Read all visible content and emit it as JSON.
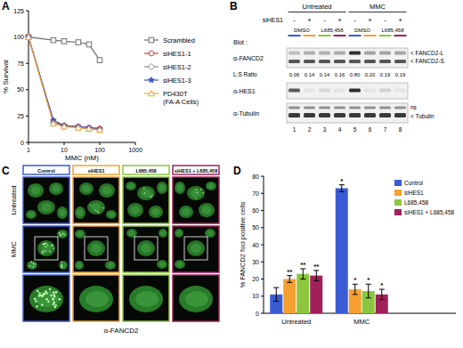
{
  "panels": [
    "A",
    "B",
    "C",
    "D"
  ],
  "chart_data": [
    {
      "type": "line",
      "x_label": "MMC (nM)",
      "y_label": "% Survival",
      "log": "x",
      "xlim": [
        1,
        1000
      ],
      "ylim": [
        0,
        125
      ],
      "xticks": [
        1,
        10,
        100,
        1000
      ],
      "yticks": [
        0,
        25,
        50,
        75,
        100,
        125
      ],
      "legend": "right",
      "series": [
        {
          "name": "Scrambled",
          "color": "#6e6e6e",
          "marker": "square",
          "x": [
            1,
            5,
            10,
            25,
            50,
            100
          ],
          "values": [
            100,
            97,
            96,
            95,
            93,
            78
          ]
        },
        {
          "name": "siHES1-1",
          "color": "#e0393e",
          "marker": "circle",
          "x": [
            1,
            5,
            10,
            25,
            50,
            100
          ],
          "values": [
            100,
            20,
            16,
            15,
            14,
            13
          ]
        },
        {
          "name": "siHES1-2",
          "color": "#8a8a8a",
          "marker": "diamond",
          "x": [
            1,
            5,
            10,
            25,
            50,
            100
          ],
          "values": [
            100,
            19,
            15,
            14,
            13,
            12
          ]
        },
        {
          "name": "siHES1-3",
          "color": "#3a50c8",
          "marker": "star",
          "x": [
            1,
            5,
            10,
            25,
            50,
            100
          ],
          "values": [
            100,
            21,
            16,
            15,
            14,
            13
          ]
        },
        {
          "name": "PD430T (FA-A Cells)",
          "color": "#f0a030",
          "marker": "triangle",
          "x": [
            1,
            5,
            10,
            25,
            50,
            100
          ],
          "values": [
            100,
            18,
            15,
            14,
            13,
            12
          ]
        }
      ]
    },
    {
      "type": "bar",
      "y_label": "% FANCD2 foci positive cells",
      "categories": [
        "Untreated",
        "MMC"
      ],
      "ylim": [
        0,
        80
      ],
      "yticks": [
        0,
        10,
        20,
        30,
        40,
        50,
        60,
        70,
        80
      ],
      "legend": "upper right",
      "series": [
        {
          "name": "Control",
          "color": "#3b5bd6",
          "values": [
            11,
            73
          ],
          "errors": [
            4,
            2
          ],
          "significance": [
            null,
            "*"
          ]
        },
        {
          "name": "siHES1",
          "color": "#f5a030",
          "values": [
            20,
            14
          ],
          "errors": [
            2,
            3
          ],
          "significance": [
            "**",
            "*"
          ]
        },
        {
          "name": "L685,458",
          "color": "#8cc63f",
          "values": [
            23,
            13
          ],
          "errors": [
            3,
            4
          ],
          "significance": [
            "**",
            "*"
          ]
        },
        {
          "name": "siHES1 + L685,458",
          "color": "#a0205a",
          "values": [
            22,
            11
          ],
          "errors": [
            3,
            3
          ],
          "significance": [
            "**",
            "*"
          ]
        }
      ]
    }
  ],
  "blot": {
    "treatments": [
      "Untreated",
      "MMC"
    ],
    "sirna_label": "siHES1",
    "sirna": [
      "-",
      "+",
      "-",
      "+",
      "-",
      "+",
      "-",
      "+"
    ],
    "drugs": [
      "DMSO",
      "L685,458",
      "DMSO",
      "L685,458"
    ],
    "blot_label": "Blot :",
    "antibodies": [
      "α-FANCD2",
      "α-HES1",
      "α-Tubulin"
    ],
    "ratio_label": "L:S Ratio",
    "ratios": [
      "0.06",
      "0.14",
      "0.14",
      "0.16",
      "0.80",
      "0.20",
      "0.19",
      "0.19"
    ],
    "band_labels": [
      "< FANCD2-L",
      "< FANCD2-S",
      "ns",
      "< Tubulin"
    ],
    "lanes": [
      1,
      2,
      3,
      4,
      5,
      6,
      7,
      8
    ]
  },
  "microscopy": {
    "columns": [
      {
        "label": "Control",
        "color": "#3b5bd6"
      },
      {
        "label": "siHES1",
        "color": "#f5a030"
      },
      {
        "label": "L685,458",
        "color": "#8cc63f"
      },
      {
        "label": "siHES1 + L685,458",
        "color": "#a0205a"
      }
    ],
    "rows": [
      "Untreated",
      "MMC"
    ],
    "stain": "α-FANCD2"
  }
}
